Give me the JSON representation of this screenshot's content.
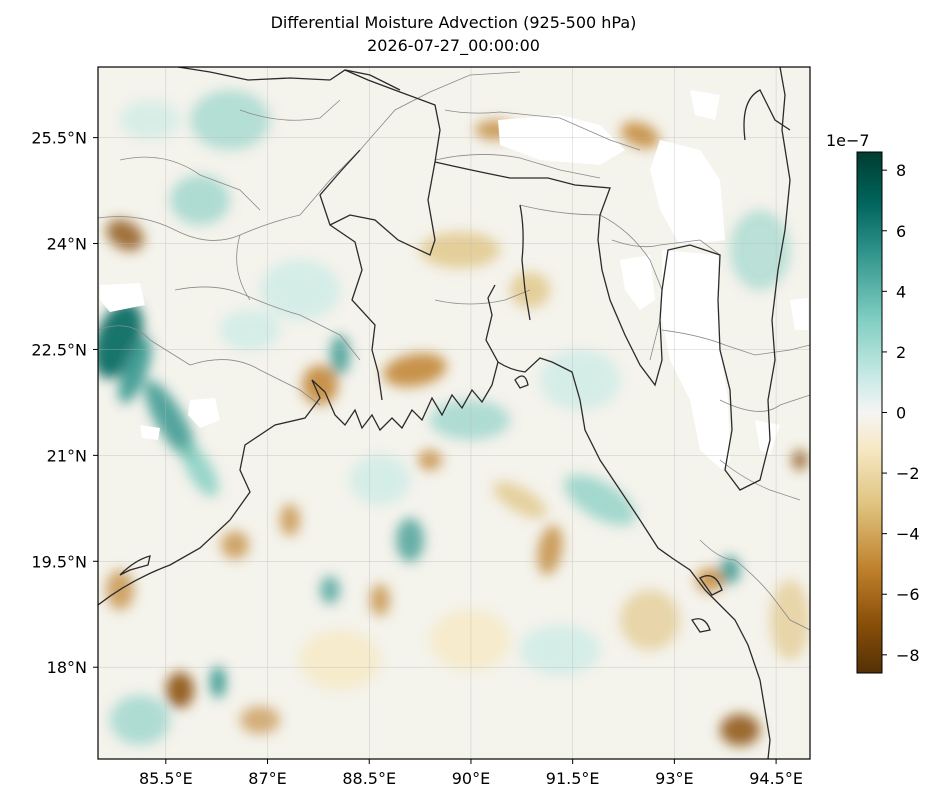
{
  "figure": {
    "title": "Differential Moisture Advection (925-500 hPa)",
    "subtitle": "2026-07-27_00:00:00"
  },
  "map": {
    "lon_range": [
      84.5,
      95.0
    ],
    "lat_range": [
      16.7,
      26.5
    ],
    "lon_ticks": [
      {
        "value": 85.5,
        "label": "85.5°E"
      },
      {
        "value": 87.0,
        "label": "87°E"
      },
      {
        "value": 88.5,
        "label": "88.5°E"
      },
      {
        "value": 90.0,
        "label": "90°E"
      },
      {
        "value": 91.5,
        "label": "91.5°E"
      },
      {
        "value": 93.0,
        "label": "93°E"
      },
      {
        "value": 94.5,
        "label": "94.5°E"
      }
    ],
    "lat_ticks": [
      {
        "value": 25.5,
        "label": "25.5°N"
      },
      {
        "value": 24.0,
        "label": "24°N"
      },
      {
        "value": 22.5,
        "label": "22.5°N"
      },
      {
        "value": 21.0,
        "label": "21°N"
      },
      {
        "value": 19.5,
        "label": "19.5°N"
      },
      {
        "value": 18.0,
        "label": "18°N"
      }
    ],
    "gridlines": true,
    "colormap": "BrBG"
  },
  "colorbar": {
    "multiplier_label": "1e−7",
    "range": [
      -8.6,
      8.6
    ],
    "ticks": [
      {
        "value": 8,
        "label": "8"
      },
      {
        "value": 6,
        "label": "6"
      },
      {
        "value": 4,
        "label": "4"
      },
      {
        "value": 2,
        "label": "2"
      },
      {
        "value": 0,
        "label": "0"
      },
      {
        "value": -2,
        "label": "−2"
      },
      {
        "value": -4,
        "label": "−4"
      },
      {
        "value": -6,
        "label": "−6"
      },
      {
        "value": -8,
        "label": "−8"
      }
    ],
    "colors": [
      "#543005",
      "#8c510a",
      "#bf812d",
      "#dfc27d",
      "#f6e8c3",
      "#f5f5f5",
      "#c7eae5",
      "#80cdc1",
      "#35978f",
      "#01665e",
      "#003c30"
    ]
  }
}
